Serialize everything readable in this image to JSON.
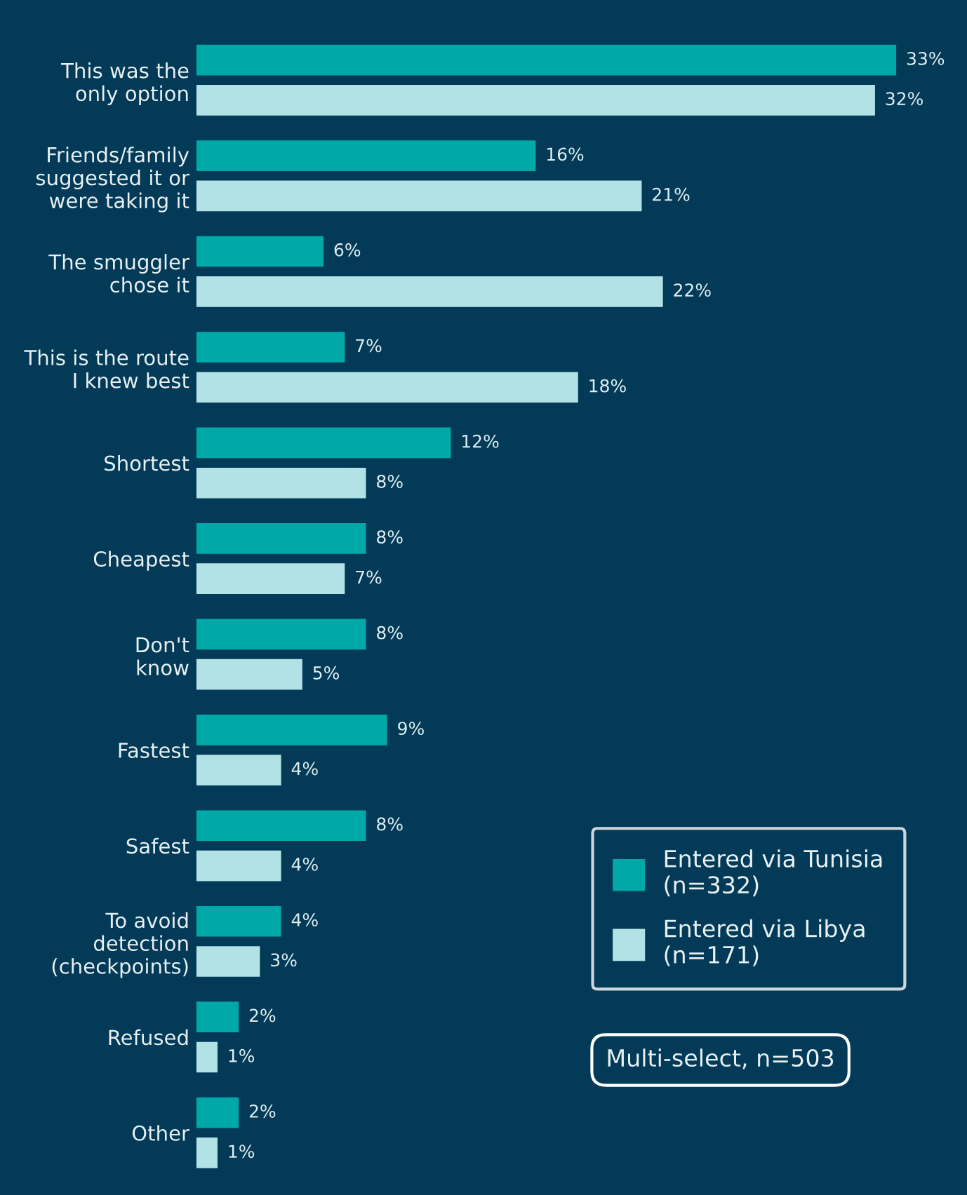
{
  "chart_data": {
    "type": "bar",
    "orientation": "horizontal",
    "categories": [
      "This was the\nonly option",
      "Friends/family\nsuggested it or\nwere taking it",
      "The smuggler\nchose it",
      "This is the route\nI knew best",
      "Shortest",
      "Cheapest",
      "Don't\nknow",
      "Fastest",
      "Safest",
      "To avoid\ndetection\n(checkpoints)",
      "Refused",
      "Other"
    ],
    "series": [
      {
        "name": "Entered via Tunisia\n(n=332)",
        "color": "#00a8a8",
        "values": [
          33,
          16,
          6,
          7,
          12,
          8,
          8,
          9,
          8,
          4,
          2,
          2
        ],
        "value_labels": [
          "33%",
          "16%",
          "6%",
          "7%",
          "12%",
          "8%",
          "8%",
          "9%",
          "8%",
          "4%",
          "2%",
          "2%"
        ]
      },
      {
        "name": "Entered via Libya\n(n=171)",
        "color": "#b2e2e6",
        "values": [
          32,
          21,
          22,
          18,
          8,
          7,
          5,
          4,
          4,
          3,
          1,
          1
        ],
        "value_labels": [
          "32%",
          "21%",
          "22%",
          "18%",
          "8%",
          "7%",
          "5%",
          "4%",
          "4%",
          "3%",
          "1%",
          "1%"
        ]
      }
    ],
    "tick_labels": "y",
    "grid": false,
    "legend": "bottom right",
    "annotations": [
      "Multi-select, n=503"
    ]
  }
}
